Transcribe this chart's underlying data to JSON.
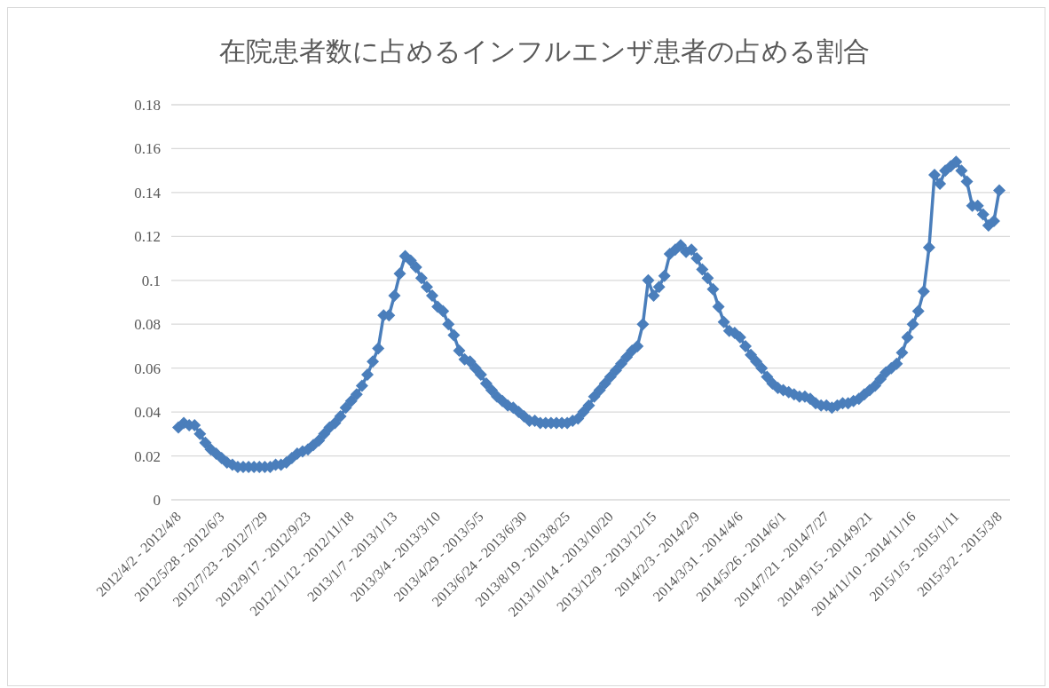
{
  "chart_data": {
    "type": "line",
    "title": "在院患者数に占めるインフルエンザ患者の占める割合",
    "categories": [
      "2012/4/2 - 2012/4/8",
      null,
      null,
      null,
      null,
      null,
      null,
      null,
      "2012/5/28 - 2012/6/3",
      null,
      null,
      null,
      null,
      null,
      null,
      null,
      "2012/7/23 - 2012/7/29",
      null,
      null,
      null,
      null,
      null,
      null,
      null,
      "2012/9/17 - 2012/9/23",
      null,
      null,
      null,
      null,
      null,
      null,
      null,
      "2012/11/12 - 2012/11/18",
      null,
      null,
      null,
      null,
      null,
      null,
      null,
      "2013/1/7 - 2013/1/13",
      null,
      null,
      null,
      null,
      null,
      null,
      null,
      "2013/3/4 - 2013/3/10",
      null,
      null,
      null,
      null,
      null,
      null,
      null,
      "2013/4/29 - 2013/5/5",
      null,
      null,
      null,
      null,
      null,
      null,
      null,
      "2013/6/24 - 2013/6/30",
      null,
      null,
      null,
      null,
      null,
      null,
      null,
      "2013/8/19 - 2013/8/25",
      null,
      null,
      null,
      null,
      null,
      null,
      null,
      "2013/10/14 - 2013/10/20",
      null,
      null,
      null,
      null,
      null,
      null,
      null,
      "2013/12/9 - 2013/12/15",
      null,
      null,
      null,
      null,
      null,
      null,
      null,
      "2014/2/3 - 2014/2/9",
      null,
      null,
      null,
      null,
      null,
      null,
      null,
      "2014/3/31 - 2014/4/6",
      null,
      null,
      null,
      null,
      null,
      null,
      null,
      "2014/5/26 - 2014/6/1",
      null,
      null,
      null,
      null,
      null,
      null,
      null,
      "2014/7/21 - 2014/7/27",
      null,
      null,
      null,
      null,
      null,
      null,
      null,
      "2014/9/15 - 2014/9/21",
      null,
      null,
      null,
      null,
      null,
      null,
      null,
      "2014/11/10 - 2014/11/16",
      null,
      null,
      null,
      null,
      null,
      null,
      null,
      "2015/1/5 - 2015/1/11",
      null,
      null,
      null,
      null,
      null,
      null,
      null,
      "2015/3/2 - 2015/3/8"
    ],
    "series": [
      {
        "color": "#4a7ebb",
        "values": [
          0.033,
          0.035,
          0.034,
          0.034,
          0.03,
          0.026,
          0.023,
          0.021,
          0.019,
          0.017,
          0.016,
          0.015,
          0.015,
          0.015,
          0.015,
          0.015,
          0.015,
          0.015,
          0.016,
          0.016,
          0.017,
          0.019,
          0.021,
          0.022,
          0.023,
          0.025,
          0.027,
          0.03,
          0.033,
          0.035,
          0.038,
          0.042,
          0.045,
          0.048,
          0.052,
          0.057,
          0.063,
          0.069,
          0.084,
          0.084,
          0.093,
          0.103,
          0.111,
          0.109,
          0.106,
          0.101,
          0.097,
          0.093,
          0.088,
          0.086,
          0.08,
          0.075,
          0.068,
          0.064,
          0.063,
          0.06,
          0.057,
          0.053,
          0.05,
          0.047,
          0.045,
          0.043,
          0.042,
          0.04,
          0.038,
          0.036,
          0.036,
          0.035,
          0.035,
          0.035,
          0.035,
          0.035,
          0.035,
          0.036,
          0.037,
          0.04,
          0.043,
          0.047,
          0.05,
          0.053,
          0.056,
          0.059,
          0.062,
          0.065,
          0.068,
          0.07,
          0.08,
          0.1,
          0.093,
          0.097,
          0.102,
          0.112,
          0.114,
          0.116,
          0.113,
          0.114,
          0.11,
          0.105,
          0.101,
          0.096,
          0.088,
          0.081,
          0.077,
          0.076,
          0.074,
          0.07,
          0.066,
          0.063,
          0.06,
          0.056,
          0.053,
          0.051,
          0.05,
          0.049,
          0.048,
          0.047,
          0.047,
          0.046,
          0.044,
          0.043,
          0.043,
          0.042,
          0.043,
          0.044,
          0.044,
          0.045,
          0.046,
          0.048,
          0.05,
          0.052,
          0.055,
          0.058,
          0.06,
          0.062,
          0.067,
          0.074,
          0.08,
          0.086,
          0.095,
          0.115,
          0.148,
          0.144,
          0.15,
          0.152,
          0.154,
          0.15,
          0.145,
          0.134,
          0.134,
          0.13,
          0.125,
          0.127,
          0.141
        ]
      }
    ],
    "ylim": [
      0,
      0.18
    ],
    "yticks": [
      0,
      0.02,
      0.04,
      0.06,
      0.08,
      0.1,
      0.12,
      0.14,
      0.16,
      0.18
    ],
    "grid": "y",
    "marker": "diamond",
    "line_style": "solid"
  }
}
